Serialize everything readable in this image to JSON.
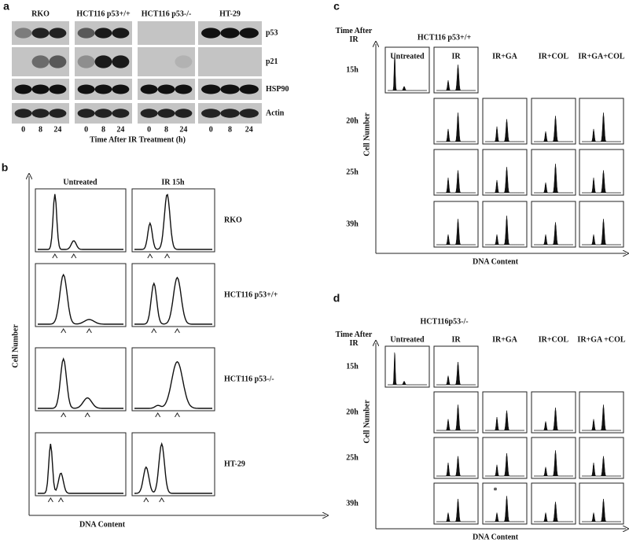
{
  "panel_a": {
    "label": "a",
    "cell_lines": [
      "RKO",
      "HCT116 p53+/+",
      "HCT116 p53-/-",
      "HT-29"
    ],
    "proteins": [
      "p53",
      "p21",
      "HSP90",
      "Actin"
    ],
    "timepoints": [
      "0",
      "8",
      "24"
    ],
    "xlabel": "Time After IR Treatment (h)"
  },
  "panel_b": {
    "label": "b",
    "columns": [
      "Untreated",
      "IR 15h"
    ],
    "rows": [
      "RKO",
      "HCT116 p53+/+",
      "HCT116 p53-/-",
      "HT-29"
    ],
    "ylabel": "Cell Number",
    "xlabel": "DNA Content"
  },
  "panel_c": {
    "label": "c",
    "title": "HCT116 p53+/+",
    "corner": "Time After IR",
    "columns": [
      "Untreated",
      "IR",
      "IR+GA",
      "IR+COL",
      "IR+GA+COL"
    ],
    "rows": [
      "15h",
      "20h",
      "25h",
      "39h"
    ],
    "ylabel": "Cell Number",
    "xlabel": "DNA Content"
  },
  "panel_d": {
    "label": "d",
    "title": "HCT116p53-/-",
    "corner": "Time After IR",
    "columns": [
      "Untreated",
      "IR",
      "IR+GA",
      "IR+COL",
      "IR+GA +COL"
    ],
    "rows": [
      "15h",
      "20h",
      "25h",
      "39h"
    ],
    "ylabel": "Cell Number",
    "xlabel": "DNA Content",
    "annotation": "*"
  }
}
